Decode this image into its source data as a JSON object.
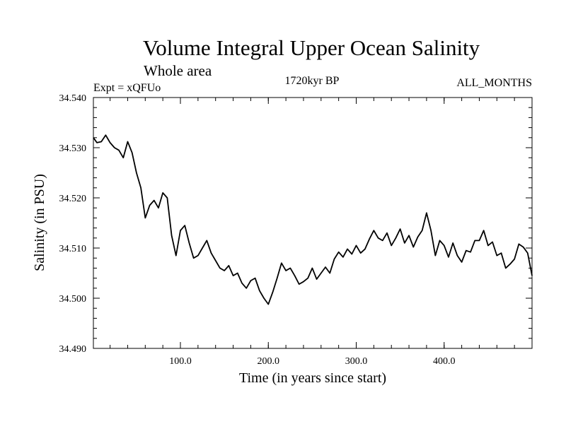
{
  "chart_data": {
    "type": "line",
    "title": "Volume Integral Upper Ocean Salinity",
    "subtitle": "Whole area",
    "header_left": "Expt = xQFUo",
    "header_center": "1720kyr BP",
    "header_right": "ALL_MONTHS",
    "xlabel": "Time (in years since start)",
    "ylabel": "Salinity (in PSU)",
    "xlim": [
      1,
      500
    ],
    "ylim": [
      34.49,
      34.54
    ],
    "xticks": [
      100,
      200,
      300,
      400
    ],
    "xtick_labels": [
      "100.0",
      "200.0",
      "300.0",
      "400.0"
    ],
    "yticks": [
      34.49,
      34.5,
      34.51,
      34.52,
      34.53,
      34.54
    ],
    "ytick_labels": [
      "34.490",
      "34.500",
      "34.510",
      "34.520",
      "34.530",
      "34.540"
    ],
    "grid": false,
    "series": [
      {
        "name": "Salinity",
        "x": [
          1,
          5,
          10,
          15,
          20,
          25,
          30,
          35,
          40,
          45,
          50,
          55,
          60,
          65,
          70,
          75,
          80,
          85,
          90,
          95,
          100,
          105,
          110,
          115,
          120,
          125,
          130,
          135,
          140,
          145,
          150,
          155,
          160,
          165,
          170,
          175,
          180,
          185,
          190,
          195,
          200,
          205,
          210,
          215,
          220,
          225,
          230,
          235,
          240,
          245,
          250,
          255,
          260,
          265,
          270,
          275,
          280,
          285,
          290,
          295,
          300,
          305,
          310,
          315,
          320,
          325,
          330,
          335,
          340,
          345,
          350,
          355,
          360,
          365,
          370,
          375,
          380,
          385,
          390,
          395,
          400,
          405,
          410,
          415,
          420,
          425,
          430,
          435,
          440,
          445,
          450,
          455,
          460,
          465,
          470,
          475,
          480,
          485,
          490,
          495,
          500
        ],
        "y": [
          34.532,
          34.531,
          34.5312,
          34.5325,
          34.531,
          34.53,
          34.5295,
          34.528,
          34.5312,
          34.529,
          34.525,
          34.522,
          34.516,
          34.5185,
          34.5195,
          34.518,
          34.521,
          34.52,
          34.5125,
          34.5085,
          34.5135,
          34.5145,
          34.511,
          34.508,
          34.5085,
          34.51,
          34.5115,
          34.509,
          34.5075,
          34.506,
          34.5055,
          34.5065,
          34.5045,
          34.505,
          34.503,
          34.502,
          34.5035,
          34.504,
          34.5015,
          34.5,
          34.4988,
          34.5012,
          34.504,
          34.507,
          34.5055,
          34.506,
          34.5045,
          34.5028,
          34.5033,
          34.504,
          34.506,
          34.5038,
          34.505,
          34.5062,
          34.505,
          34.5078,
          34.5092,
          34.5082,
          34.5098,
          34.5088,
          34.5105,
          34.509,
          34.5098,
          34.5118,
          34.5135,
          34.512,
          34.5115,
          34.513,
          34.5105,
          34.512,
          34.5138,
          34.511,
          34.5125,
          34.5102,
          34.5122,
          34.5135,
          34.517,
          34.5135,
          34.5085,
          34.5115,
          34.5105,
          34.5082,
          34.511,
          34.5085,
          34.5072,
          34.5095,
          34.5092,
          34.5115,
          34.5115,
          34.5135,
          34.5105,
          34.5112,
          34.5085,
          34.509,
          34.506,
          34.5068,
          34.5078,
          34.5108,
          34.5102,
          34.509,
          34.5045
        ]
      }
    ]
  }
}
